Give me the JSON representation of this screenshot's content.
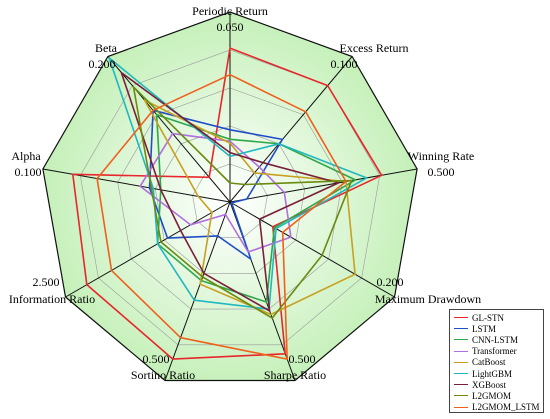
{
  "chart_data": {
    "type": "radar",
    "title": "",
    "axes": [
      {
        "name": "Periodic Return",
        "max_label": "0.050"
      },
      {
        "name": "Excess Return",
        "max_label": "0.100"
      },
      {
        "name": "Winning Rate",
        "max_label": "0.500"
      },
      {
        "name": "Maximum Drawdown",
        "max_label": "0.200"
      },
      {
        "name": "Sharpe Ratio",
        "max_label": "0.500"
      },
      {
        "name": "Sortino Ratio",
        "max_label": "0.500"
      },
      {
        "name": "Information Ratio",
        "max_label": "2.500"
      },
      {
        "name": "Alpha",
        "max_label": "0.100"
      },
      {
        "name": "Beta",
        "max_label": "0.200"
      }
    ],
    "levels": 5,
    "legend_position": "bottom-right",
    "series": [
      {
        "name": "GL-STN",
        "color": "#e8262b",
        "values": [
          0.81,
          0.8,
          0.81,
          0.26,
          0.85,
          0.88,
          0.87,
          0.84,
          0.17
        ]
      },
      {
        "name": "LSTM",
        "color": "#1f4fc8",
        "values": [
          0.38,
          0.43,
          0.09,
          0.01,
          0.32,
          0.19,
          0.38,
          0.43,
          0.63
        ]
      },
      {
        "name": "CNN-LSTM",
        "color": "#2ea84a",
        "values": [
          0.33,
          0.4,
          0.67,
          0.27,
          0.56,
          0.44,
          0.44,
          0.37,
          0.6
        ]
      },
      {
        "name": "Transformer",
        "color": "#b070e0",
        "values": [
          0.32,
          0.24,
          0.29,
          0.37,
          0.28,
          0.07,
          0.24,
          0.48,
          0.47
        ]
      },
      {
        "name": "CatBoost",
        "color": "#c8a020",
        "values": [
          0.31,
          0.2,
          0.62,
          0.76,
          0.63,
          0.46,
          0.11,
          0.17,
          0.7
        ]
      },
      {
        "name": "LightGBM",
        "color": "#20b8c0",
        "values": [
          0.24,
          0.4,
          0.73,
          0.28,
          0.6,
          0.55,
          0.44,
          0.41,
          0.99
        ]
      },
      {
        "name": "XGBoost",
        "color": "#7a1f3a",
        "values": [
          0.26,
          0.27,
          0.58,
          0.18,
          0.61,
          0.4,
          0.3,
          0.37,
          0.89
        ]
      },
      {
        "name": "L2GMOM",
        "color": "#6a8a10",
        "values": [
          0.1,
          0.12,
          0.65,
          0.56,
          0.65,
          0.42,
          0.42,
          0.42,
          0.79
        ]
      },
      {
        "name": "L2GMOM_LSTM",
        "color": "#f0601c",
        "values": [
          0.67,
          0.62,
          0.62,
          0.32,
          0.88,
          0.76,
          0.72,
          0.71,
          0.63
        ]
      }
    ]
  }
}
